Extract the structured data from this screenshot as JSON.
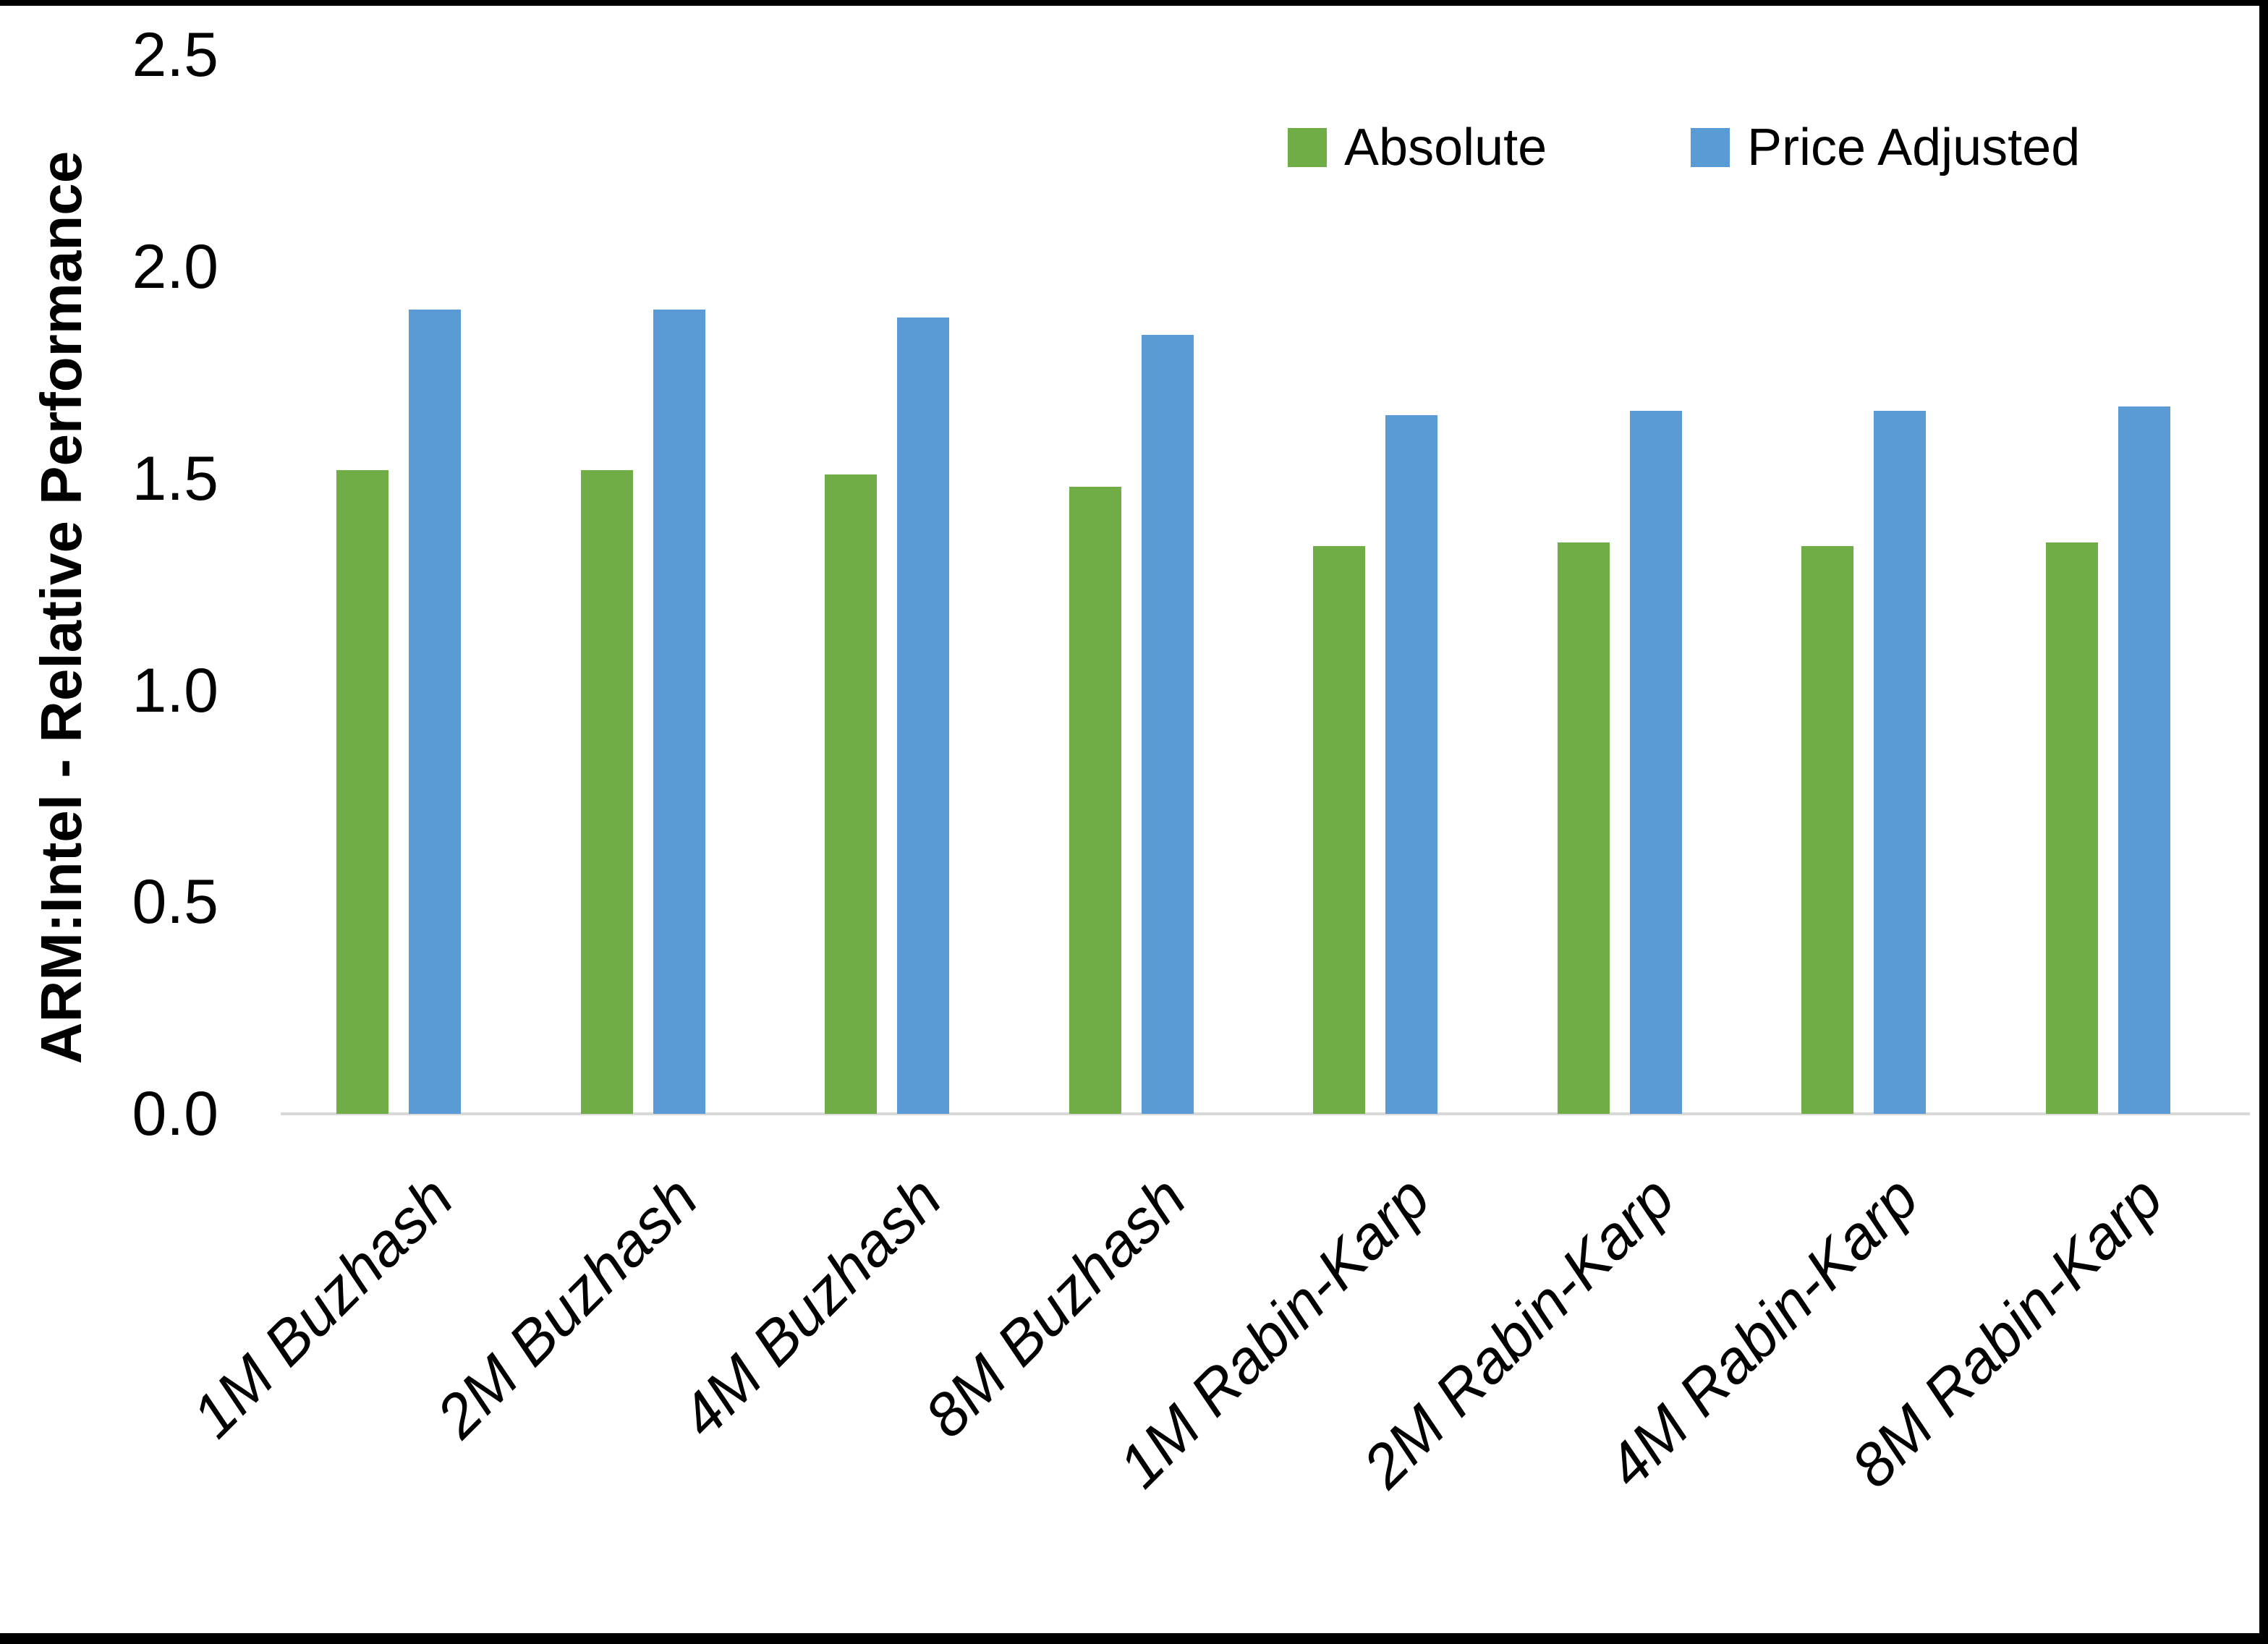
{
  "chart_data": {
    "type": "bar",
    "categories": [
      "1M Buzhash",
      "2M Buzhash",
      "4M Buzhash",
      "8M Buzhash",
      "1M Rabin-Karp",
      "2M Rabin-Karp",
      "4M Rabin-Karp",
      "8M Rabin-Karp"
    ],
    "series": [
      {
        "name": "Absolute",
        "color": "#70AD47",
        "values": [
          1.52,
          1.52,
          1.51,
          1.48,
          1.34,
          1.35,
          1.34,
          1.35
        ]
      },
      {
        "name": "Price Adjusted",
        "color": "#5B9BD5",
        "values": [
          1.9,
          1.9,
          1.88,
          1.84,
          1.65,
          1.66,
          1.66,
          1.67
        ]
      }
    ],
    "title": "",
    "xlabel": "",
    "ylabel": "ARM:Intel - Relative Performance",
    "ylim": [
      0,
      2.5
    ],
    "y_ticks": [
      "0.0",
      "0.5",
      "1.0",
      "1.5",
      "2.0",
      "2.5"
    ],
    "grid": false,
    "legend_position": "top-right"
  },
  "colors": {
    "absolute_bar": "#70AD47",
    "price_adjusted_bar": "#5B9BD5",
    "axis_line": "#D9D9D9",
    "text": "#000000",
    "background": "#FFFFFF",
    "frame_border": "#000000"
  }
}
